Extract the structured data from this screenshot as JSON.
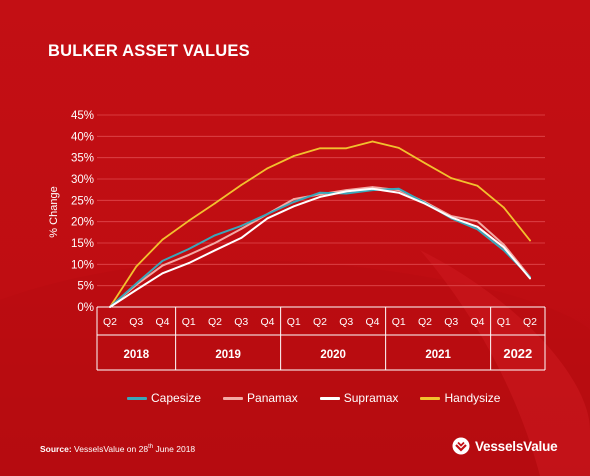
{
  "title": "BULKER ASSET VALUES",
  "source": {
    "label": "Source:",
    "text_before": "VesselsValue on 28",
    "sup": "th",
    "text_after": " June 2018"
  },
  "brand": {
    "name": "VesselsValue",
    "icon": "vesselsvalue-logo-icon"
  },
  "colors": {
    "background": "#c30f14",
    "gridline": "#e0484c",
    "capesize": "#3aa6b9",
    "panamax": "#f4a9a4",
    "supramax": "#ffffff",
    "handysize": "#f2c12e"
  },
  "chart_data": {
    "type": "line",
    "title": "BULKER ASSET VALUES",
    "ylabel": "% Change",
    "xlabel": "",
    "ylim": [
      0,
      45
    ],
    "yticks": [
      0,
      5,
      10,
      15,
      20,
      25,
      30,
      35,
      40,
      45
    ],
    "ytick_labels": [
      "0%",
      "5%",
      "10%",
      "15%",
      "20%",
      "25%",
      "30%",
      "35%",
      "40%",
      "45%"
    ],
    "grid": true,
    "legend": "bottom",
    "categories": [
      "Q2",
      "Q3",
      "Q4",
      "Q1",
      "Q2",
      "Q3",
      "Q4",
      "Q1",
      "Q2",
      "Q3",
      "Q4",
      "Q1",
      "Q2",
      "Q3",
      "Q4",
      "Q1",
      "Q2"
    ],
    "year_groups": [
      {
        "label": "2018",
        "span": 3
      },
      {
        "label": "2019",
        "span": 4
      },
      {
        "label": "2020",
        "span": 4
      },
      {
        "label": "2021",
        "span": 4
      },
      {
        "label": "2022",
        "span": 2
      }
    ],
    "series": [
      {
        "name": "Capesize",
        "color": "#3aa6b9",
        "values": [
          0,
          5.5,
          10.8,
          13.6,
          16.8,
          19.0,
          21.8,
          24.6,
          26.8,
          26.6,
          27.4,
          27.7,
          24.4,
          20.8,
          18.2,
          13.3,
          7.0
        ]
      },
      {
        "name": "Panamax",
        "color": "#f4a9a4",
        "values": [
          0,
          5.2,
          9.7,
          12.2,
          15.0,
          18.3,
          21.8,
          25.3,
          26.4,
          27.4,
          28.1,
          27.4,
          24.6,
          21.3,
          20.1,
          14.6,
          7.0
        ]
      },
      {
        "name": "Supramax",
        "color": "#ffffff",
        "values": [
          0,
          4.0,
          7.9,
          10.3,
          13.3,
          16.2,
          20.8,
          23.6,
          25.8,
          27.1,
          27.7,
          26.8,
          24.2,
          21.0,
          18.8,
          14.0,
          6.7
        ]
      },
      {
        "name": "Handysize",
        "color": "#f2c12e",
        "values": [
          0,
          9.5,
          15.8,
          20.2,
          24.3,
          28.6,
          32.5,
          35.4,
          37.2,
          37.2,
          38.8,
          37.3,
          33.7,
          30.2,
          28.4,
          23.3,
          15.6
        ]
      }
    ]
  }
}
